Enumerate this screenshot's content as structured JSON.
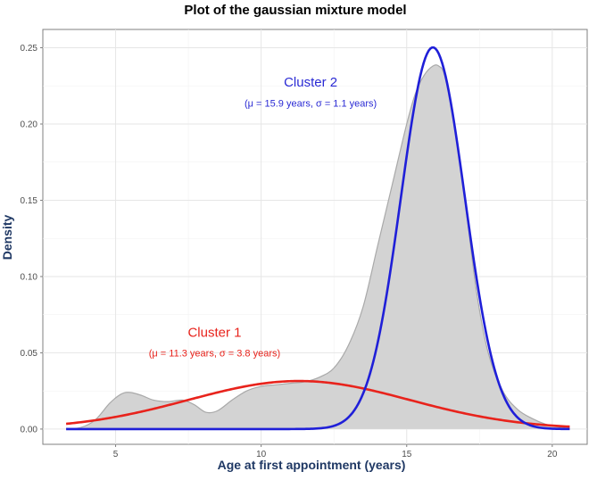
{
  "chart_data": {
    "type": "line",
    "title": "Plot of the gaussian mixture model",
    "xlabel": "Age at first appointment (years)",
    "ylabel": "Density",
    "xlim": [
      2.5,
      21.2
    ],
    "ylim": [
      -0.01,
      0.262
    ],
    "xticks": [
      5,
      10,
      15,
      20
    ],
    "xtick_labels": [
      "5",
      "10",
      "15",
      "20"
    ],
    "yticks": [
      0.0,
      0.05,
      0.1,
      0.15,
      0.2,
      0.25
    ],
    "ytick_labels": [
      "0.00",
      "0.05",
      "0.10",
      "0.15",
      "0.20",
      "0.25"
    ],
    "grid": true,
    "legend": "none",
    "series": [
      {
        "kind": "area",
        "color": "#d3d3d3",
        "stroke": "#a9a9a9",
        "x": [
          3.3,
          3.8,
          4.3,
          4.8,
          5.2,
          5.5,
          5.9,
          6.3,
          6.8,
          7.3,
          7.7,
          8.1,
          8.5,
          9.0,
          9.5,
          10.0,
          10.5,
          11.0,
          11.5,
          12.0,
          12.5,
          13.0,
          13.5,
          14.0,
          14.5,
          15.0,
          15.3,
          15.6,
          15.9,
          16.1,
          16.3,
          16.6,
          17.0,
          17.4,
          17.8,
          18.3,
          18.8,
          19.3,
          19.8,
          20.3,
          20.6
        ],
        "y": [
          0.0005,
          0.001,
          0.006,
          0.017,
          0.023,
          0.024,
          0.022,
          0.019,
          0.018,
          0.019,
          0.016,
          0.011,
          0.012,
          0.019,
          0.025,
          0.028,
          0.029,
          0.03,
          0.031,
          0.034,
          0.04,
          0.055,
          0.08,
          0.12,
          0.16,
          0.2,
          0.22,
          0.232,
          0.238,
          0.238,
          0.232,
          0.205,
          0.15,
          0.09,
          0.05,
          0.025,
          0.013,
          0.007,
          0.003,
          0.001,
          0.0005
        ]
      },
      {
        "name": "Cluster 1",
        "kind": "gaussian",
        "color": "#e8231c",
        "weight": 0.3,
        "mu": 11.3,
        "sigma": 3.8,
        "x_range": [
          3.3,
          20.6
        ]
      },
      {
        "name": "Cluster 2",
        "kind": "gaussian",
        "color": "#1f1fd8",
        "weight": 0.69,
        "mu": 15.9,
        "sigma": 1.1,
        "x_range": [
          3.3,
          20.6
        ]
      }
    ],
    "annotations": [
      {
        "name": "Cluster 2",
        "text": "Cluster 2",
        "params": "(μ = 15.9 years, σ = 1.1 years)",
        "color": "#2a2ad4",
        "x": 11.7,
        "y": 0.2245,
        "params_y": 0.2115
      },
      {
        "name": "Cluster 1",
        "text": "Cluster 1",
        "params": "(μ = 11.3 years, σ = 3.8 years)",
        "color": "#e8231c",
        "x": 8.4,
        "y": 0.0605,
        "params_y": 0.0475
      }
    ]
  }
}
